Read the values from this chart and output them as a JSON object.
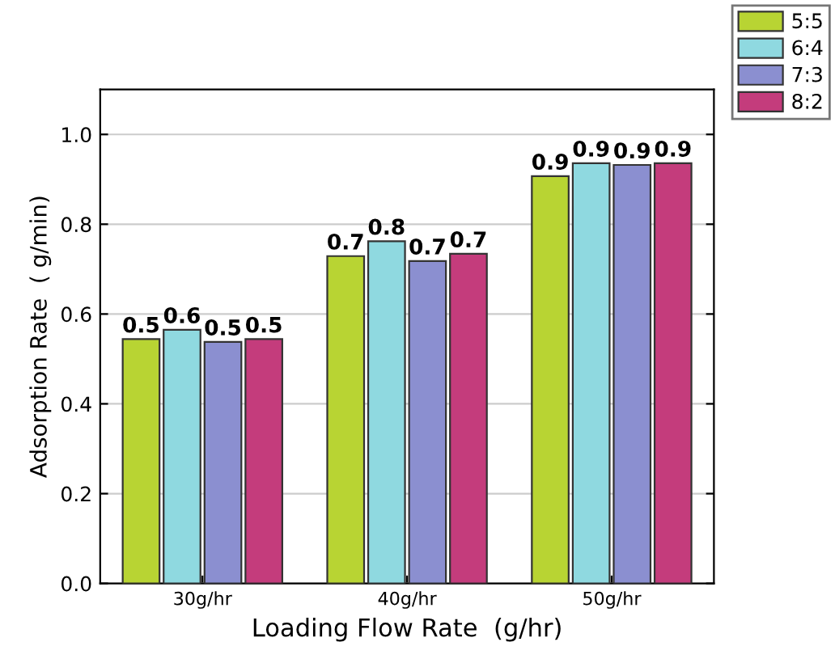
{
  "chart_data": {
    "type": "bar",
    "xlabel": "Loading Flow Rate  (g/hr)",
    "ylabel": "Adsorption Rate  ( g/min)",
    "categories": [
      "30g/hr",
      "40g/hr",
      "50g/hr"
    ],
    "series": [
      {
        "name": "5:5",
        "color": "#b8d433",
        "values": [
          0.544,
          0.729,
          0.907
        ],
        "value_labels": [
          "0.5",
          "0.7",
          "0.9"
        ]
      },
      {
        "name": "6:4",
        "color": "#8fd9e0",
        "values": [
          0.565,
          0.762,
          0.936
        ],
        "value_labels": [
          "0.6",
          "0.8",
          "0.9"
        ]
      },
      {
        "name": "7:3",
        "color": "#8b8fd0",
        "values": [
          0.538,
          0.718,
          0.932
        ],
        "value_labels": [
          "0.5",
          "0.7",
          "0.9"
        ]
      },
      {
        "name": "8:2",
        "color": "#c43c7c",
        "values": [
          0.544,
          0.734,
          0.936
        ],
        "value_labels": [
          "0.5",
          "0.7",
          "0.9"
        ]
      }
    ],
    "ylim": [
      0,
      1.1
    ],
    "yticks": [
      {
        "value": 0,
        "label": "0.0"
      },
      {
        "value": 0.2,
        "label": "0.2"
      },
      {
        "value": 0.4,
        "label": "0.4"
      },
      {
        "value": 0.6,
        "label": "0.6"
      },
      {
        "value": 0.8,
        "label": "0.8"
      },
      {
        "value": 1.0,
        "label": "1.0"
      }
    ],
    "grid": "y",
    "legend": "top right"
  }
}
